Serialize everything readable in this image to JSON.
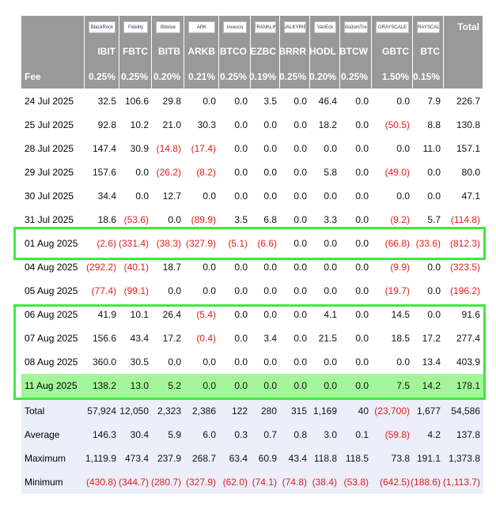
{
  "header": {
    "logos": [
      "BlackRock",
      "Fidelity",
      "Bitwise",
      "ARK",
      "Invesco",
      "FRANKLIN",
      "VALKYRIE",
      "VanEck",
      "WisdomTree",
      "GRAYSCALE",
      "GRAYSCALE"
    ],
    "total_label": "Total",
    "tickers": [
      "IBIT",
      "FBTC",
      "BITB",
      "ARKB",
      "BTCO",
      "EZBC",
      "BRRR",
      "HODL",
      "BTCW",
      "GBTC",
      "BTC"
    ],
    "fee_label": "Fee",
    "fees": [
      "0.25%",
      "0.25%",
      "0.20%",
      "0.21%",
      "0.25%",
      "0.19%",
      "0.25%",
      "0.20%",
      "0.25%",
      "1.50%",
      "0.15%"
    ]
  },
  "table": {
    "rows": [
      {
        "label": "24 Jul 2025",
        "values": [
          "32.5",
          "106.6",
          "29.8",
          "0.0",
          "0.0",
          "3.5",
          "0.0",
          "46.4",
          "0.0",
          "0.0",
          "7.9",
          "226.7"
        ]
      },
      {
        "label": "25 Jul 2025",
        "values": [
          "92.8",
          "10.2",
          "21.0",
          "30.3",
          "0.0",
          "0.0",
          "0.0",
          "18.2",
          "0.0",
          "(50.5)",
          "8.8",
          "130.8"
        ]
      },
      {
        "label": "28 Jul 2025",
        "values": [
          "147.4",
          "30.9",
          "(14.8)",
          "(17.4)",
          "0.0",
          "0.0",
          "0.0",
          "0.0",
          "0.0",
          "0.0",
          "11.0",
          "157.1"
        ]
      },
      {
        "label": "29 Jul 2025",
        "values": [
          "157.6",
          "0.0",
          "(26.2)",
          "(8.2)",
          "0.0",
          "0.0",
          "0.0",
          "5.8",
          "0.0",
          "(49.0)",
          "0.0",
          "80.0"
        ]
      },
      {
        "label": "30 Jul 2025",
        "values": [
          "34.4",
          "0.0",
          "12.7",
          "0.0",
          "0.0",
          "0.0",
          "0.0",
          "0.0",
          "0.0",
          "0.0",
          "0.0",
          "47.1"
        ]
      },
      {
        "label": "31 Jul 2025",
        "values": [
          "18.6",
          "(53.6)",
          "0.0",
          "(89.9)",
          "3.5",
          "6.8",
          "0.0",
          "3.3",
          "0.0",
          "(9.2)",
          "5.7",
          "(114.8)"
        ]
      },
      {
        "label": "01 Aug 2025",
        "values": [
          "(2.6)",
          "(331.4)",
          "(38.3)",
          "(327.9)",
          "(5.1)",
          "(6.6)",
          "0.0",
          "0.0",
          "0.0",
          "(66.8)",
          "(33.6)",
          "(812.3)"
        ]
      },
      {
        "label": "04 Aug 2025",
        "values": [
          "(292.2)",
          "(40.1)",
          "18.7",
          "0.0",
          "0.0",
          "0.0",
          "0.0",
          "0.0",
          "0.0",
          "(9.9)",
          "0.0",
          "(323.5)"
        ]
      },
      {
        "label": "05 Aug 2025",
        "values": [
          "(77.4)",
          "(99.1)",
          "0.0",
          "0.0",
          "0.0",
          "0.0",
          "0.0",
          "0.0",
          "0.0",
          "(19.7)",
          "0.0",
          "(196.2)"
        ]
      },
      {
        "label": "06 Aug 2025",
        "values": [
          "41.9",
          "10.1",
          "26.4",
          "(5.4)",
          "0.0",
          "0.0",
          "0.0",
          "4.1",
          "0.0",
          "14.5",
          "0.0",
          "91.6"
        ]
      },
      {
        "label": "07 Aug 2025",
        "values": [
          "156.6",
          "43.4",
          "17.2",
          "(0.4)",
          "0.0",
          "3.4",
          "0.0",
          "21.5",
          "0.0",
          "18.5",
          "17.2",
          "277.4"
        ]
      },
      {
        "label": "08 Aug 2025",
        "values": [
          "360.0",
          "30.5",
          "0.0",
          "0.0",
          "0.0",
          "0.0",
          "0.0",
          "0.0",
          "0.0",
          "0.0",
          "13.4",
          "403.9"
        ]
      },
      {
        "label": "11 Aug 2025",
        "values": [
          "138.2",
          "13.0",
          "5.2",
          "0.0",
          "0.0",
          "0.0",
          "0.0",
          "0.0",
          "0.0",
          "7.5",
          "14.2",
          "178.1"
        ]
      }
    ],
    "summary": [
      {
        "label": "Total",
        "values": [
          "57,924",
          "12,050",
          "2,323",
          "2,386",
          "122",
          "280",
          "315",
          "1,169",
          "40",
          "(23,700)",
          "1,677",
          "54,586"
        ]
      },
      {
        "label": "Average",
        "values": [
          "146.3",
          "30.4",
          "5.9",
          "6.0",
          "0.3",
          "0.7",
          "0.8",
          "3.0",
          "0.1",
          "(59.8)",
          "4.2",
          "137.8"
        ]
      },
      {
        "label": "Maximum",
        "values": [
          "1,119.9",
          "473.4",
          "237.9",
          "268.7",
          "63.4",
          "60.9",
          "43.4",
          "118.8",
          "118.5",
          "73.8",
          "191.1",
          "1,373.8"
        ]
      },
      {
        "label": "Minimum",
        "values": [
          "(430.8)",
          "(344.7)",
          "(280.7)",
          "(327.9)",
          "(62.0)",
          "(74.1)",
          "(74.8)",
          "(38.4)",
          "(53.8)",
          "(642.5)",
          "(188.6)",
          "(1,113.7)"
        ]
      }
    ]
  }
}
